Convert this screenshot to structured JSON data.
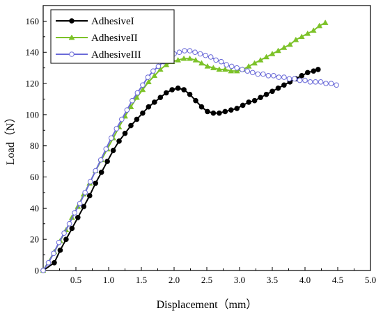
{
  "chart_data": {
    "type": "line",
    "title": "",
    "xlabel": "Displacement（mm）",
    "ylabel": "Load（N）",
    "xlim": [
      0,
      5.0
    ],
    "ylim": [
      0,
      170
    ],
    "xticks": [
      "0.5",
      "1.0",
      "1.5",
      "2.0",
      "2.5",
      "3.0",
      "3.5",
      "4.0",
      "4.5",
      "5.0"
    ],
    "yticks": [
      "0",
      "20",
      "40",
      "60",
      "80",
      "100",
      "120",
      "140",
      "160"
    ],
    "grid": false,
    "legend_position": "top-left",
    "series": [
      {
        "name": "AdhesiveI",
        "color": "#000000",
        "marker": "filled-circle",
        "x": [
          0.0,
          0.17,
          0.26,
          0.35,
          0.44,
          0.53,
          0.62,
          0.71,
          0.8,
          0.89,
          0.98,
          1.07,
          1.16,
          1.25,
          1.34,
          1.43,
          1.52,
          1.61,
          1.7,
          1.79,
          1.88,
          1.97,
          2.06,
          2.15,
          2.24,
          2.33,
          2.42,
          2.51,
          2.6,
          2.69,
          2.78,
          2.87,
          2.96,
          3.05,
          3.14,
          3.23,
          3.32,
          3.41,
          3.5,
          3.59,
          3.68,
          3.77,
          3.86,
          3.95,
          4.04,
          4.13,
          4.2
        ],
        "y": [
          0,
          5,
          13,
          20,
          27,
          34,
          41,
          48,
          56,
          63,
          70,
          77,
          83,
          88,
          93,
          97,
          101,
          105,
          108,
          111,
          114,
          116,
          117,
          116,
          113,
          109,
          105,
          102,
          101,
          101,
          102,
          103,
          104,
          106,
          108,
          109,
          111,
          113,
          115,
          117,
          119,
          121,
          123,
          125,
          127,
          128,
          129
        ]
      },
      {
        "name": "AdhesiveII",
        "color": "#7cc228",
        "marker": "filled-triangle",
        "x": [
          0.0,
          0.17,
          0.26,
          0.35,
          0.44,
          0.53,
          0.62,
          0.71,
          0.8,
          0.89,
          0.98,
          1.07,
          1.16,
          1.25,
          1.34,
          1.43,
          1.52,
          1.61,
          1.7,
          1.79,
          1.88,
          1.97,
          2.06,
          2.15,
          2.24,
          2.33,
          2.42,
          2.51,
          2.6,
          2.69,
          2.78,
          2.87,
          2.96,
          3.05,
          3.14,
          3.23,
          3.32,
          3.41,
          3.5,
          3.59,
          3.68,
          3.77,
          3.86,
          3.95,
          4.04,
          4.13,
          4.22,
          4.31
        ],
        "y": [
          0,
          12,
          19,
          26,
          34,
          41,
          49,
          56,
          64,
          71,
          78,
          85,
          92,
          99,
          105,
          111,
          116,
          121,
          125,
          129,
          132,
          134,
          135,
          136,
          136,
          135,
          133,
          131,
          130,
          129,
          129,
          128,
          128,
          129,
          131,
          133,
          135,
          137,
          139,
          141,
          143,
          145,
          148,
          150,
          152,
          154,
          157,
          159
        ]
      },
      {
        "name": "AdhesiveIII",
        "color": "#6a6ad8",
        "marker": "open-circle",
        "x": [
          0.0,
          0.08,
          0.16,
          0.24,
          0.32,
          0.4,
          0.48,
          0.56,
          0.64,
          0.72,
          0.8,
          0.88,
          0.96,
          1.04,
          1.12,
          1.2,
          1.28,
          1.36,
          1.44,
          1.52,
          1.6,
          1.68,
          1.76,
          1.84,
          1.92,
          2.0,
          2.08,
          2.16,
          2.24,
          2.32,
          2.4,
          2.48,
          2.56,
          2.64,
          2.72,
          2.8,
          2.88,
          2.96,
          3.04,
          3.12,
          3.2,
          3.28,
          3.36,
          3.44,
          3.52,
          3.6,
          3.68,
          3.76,
          3.84,
          3.92,
          4.0,
          4.08,
          4.16,
          4.24,
          4.32,
          4.4,
          4.48
        ],
        "y": [
          0,
          5,
          11,
          18,
          24,
          30,
          37,
          43,
          50,
          57,
          64,
          71,
          78,
          85,
          91,
          97,
          103,
          109,
          114,
          119,
          124,
          128,
          131,
          134,
          137,
          139,
          140,
          141,
          141,
          140,
          139,
          138,
          137,
          135,
          134,
          132,
          131,
          130,
          129,
          128,
          127,
          126,
          126,
          125,
          125,
          124,
          124,
          123,
          123,
          122,
          122,
          121,
          121,
          121,
          120,
          120,
          119
        ]
      }
    ]
  }
}
